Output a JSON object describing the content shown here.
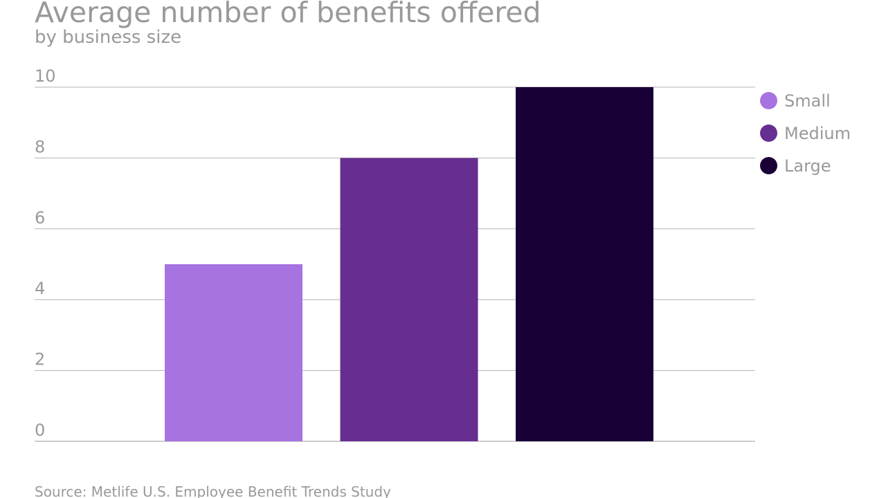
{
  "chart_data": {
    "type": "bar",
    "title": "Average number of benefits offered",
    "subtitle": "by business size",
    "xlabel": "",
    "ylabel": "",
    "ylim": [
      0,
      10
    ],
    "yticks": [
      0,
      2,
      4,
      6,
      8,
      10
    ],
    "grid": true,
    "legend_position": "right",
    "series": [
      {
        "name": "Small",
        "value": 5,
        "color": "#a673e0"
      },
      {
        "name": "Medium",
        "value": 8,
        "color": "#662e91"
      },
      {
        "name": "Large",
        "value": 10,
        "color": "#180036"
      }
    ],
    "source": "Source: Metlife U.S. Employee Benefit Trends Study"
  }
}
